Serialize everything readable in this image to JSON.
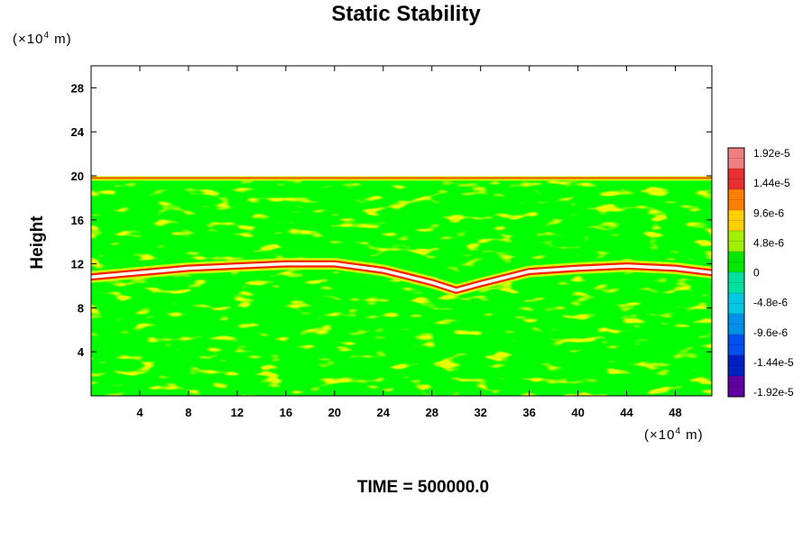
{
  "chart_data": {
    "type": "heatmap",
    "title": "Static Stability",
    "ylabel": "Height",
    "y_unit": {
      "prefix": "(×10",
      "exp": "4",
      "suffix": " m)"
    },
    "x_unit": {
      "prefix": "(×10",
      "exp": "4",
      "suffix": " m)"
    },
    "footer": "TIME = 500000.0",
    "xlim": [
      0,
      51
    ],
    "ylim": [
      0,
      30
    ],
    "x_ticks": [
      "4",
      "8",
      "12",
      "16",
      "20",
      "24",
      "28",
      "32",
      "36",
      "40",
      "44",
      "48"
    ],
    "y_ticks": [
      "4",
      "8",
      "12",
      "16",
      "20",
      "24",
      "28"
    ],
    "colorbar": {
      "labels": [
        "1.92e-5",
        "1.44e-5",
        "9.6e-6",
        "4.8e-6",
        "0",
        "-4.8e-6",
        "-9.6e-6",
        "-1.44e-5",
        "-1.92e-5"
      ],
      "range": [
        -1.92e-05,
        1.92e-05
      ],
      "colors": [
        "#f08080",
        "#e83030",
        "#ff7f00",
        "#ffd000",
        "#a0f000",
        "#00e800",
        "#00e0a0",
        "#00c8e0",
        "#0090e8",
        "#0050f0",
        "#0020c0",
        "#6000a0"
      ]
    },
    "field_top_height": 19.8,
    "stable_layer_height_profile": {
      "x": [
        0,
        4,
        8,
        12,
        16,
        20,
        24,
        28,
        30,
        32,
        36,
        40,
        44,
        48,
        51
      ],
      "y": [
        10.8,
        11.2,
        11.6,
        11.8,
        12.0,
        12.0,
        11.4,
        10.3,
        9.6,
        10.2,
        11.3,
        11.6,
        11.8,
        11.6,
        11.2
      ]
    },
    "colors": {
      "background_field": "#00ff00",
      "neutral": "#ccff00",
      "positive": "#ff2000",
      "peak": "#ffffff"
    }
  }
}
